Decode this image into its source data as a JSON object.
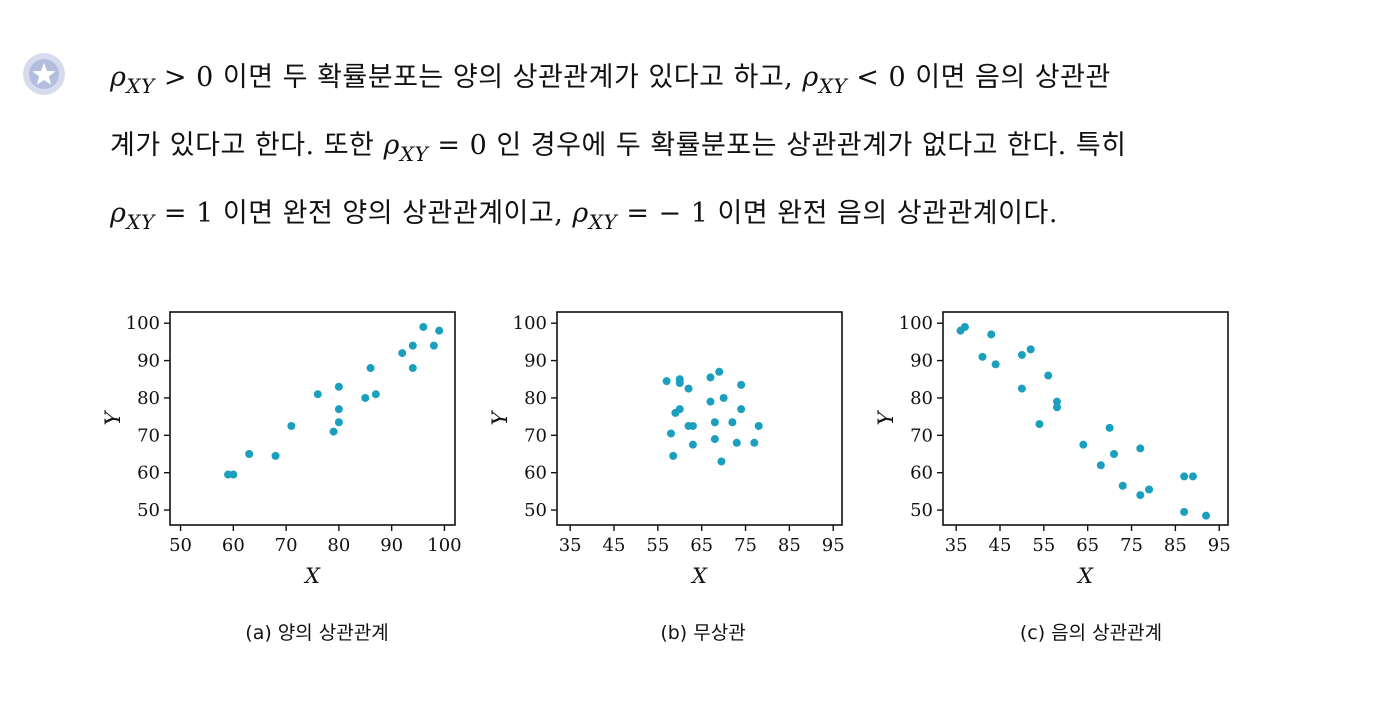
{
  "paragraph": {
    "line1": {
      "rho1": "ρ",
      "sub1": "XY",
      "t1": "> 0 이면 두 확률분포는 양의 상관관계가 있다고 하고,",
      "rho2": "ρ",
      "sub2": "XY",
      "t2": "< 0 이면 음의 상관관"
    },
    "line2": {
      "t1": "계가 있다고 한다. 또한",
      "rho": "ρ",
      "sub": "XY",
      "t2": "= 0 인 경우에 두 확률분포는 상관관계가 없다고 한다. 특히"
    },
    "line3": {
      "rho1": "ρ",
      "sub1": "XY",
      "t1": "= 1 이면 완전 양의 상관관계이고,",
      "rho2": "ρ",
      "sub2": "XY",
      "t2": "= − 1 이면 완전 음의 상관관계이다."
    }
  },
  "bullet_icon": "star-icon",
  "colors": {
    "point": "#1a9fbf",
    "bullet_outer": "#d6dcee",
    "bullet_inner": "#b3bedf"
  },
  "chart_data": [
    {
      "type": "scatter",
      "caption": "(a) 양의 상관관계",
      "xlabel": "X",
      "ylabel": "Y",
      "xlim": [
        48,
        102
      ],
      "ylim": [
        46,
        103
      ],
      "xticks": [
        50,
        60,
        70,
        80,
        90,
        100
      ],
      "yticks": [
        50,
        60,
        70,
        80,
        90,
        100
      ],
      "points": [
        [
          59,
          59.5
        ],
        [
          60,
          59.5
        ],
        [
          63,
          65
        ],
        [
          68,
          64.5
        ],
        [
          71,
          72.5
        ],
        [
          76,
          81
        ],
        [
          79,
          71
        ],
        [
          80,
          73.5
        ],
        [
          80,
          77
        ],
        [
          80,
          83
        ],
        [
          85,
          80
        ],
        [
          86,
          88
        ],
        [
          87,
          81
        ],
        [
          92,
          92
        ],
        [
          94,
          94
        ],
        [
          94,
          88
        ],
        [
          96,
          99
        ],
        [
          98,
          94
        ],
        [
          99,
          98
        ]
      ]
    },
    {
      "type": "scatter",
      "caption": "(b) 무상관",
      "xlabel": "X",
      "ylabel": "Y",
      "xlim": [
        32,
        97
      ],
      "ylim": [
        46,
        103
      ],
      "xticks": [
        35,
        45,
        55,
        65,
        75,
        85,
        95
      ],
      "yticks": [
        50,
        60,
        70,
        80,
        90,
        100
      ],
      "points": [
        [
          57,
          84.5
        ],
        [
          58,
          70.5
        ],
        [
          58.5,
          64.5
        ],
        [
          59,
          76
        ],
        [
          60,
          77
        ],
        [
          60,
          85
        ],
        [
          60,
          84
        ],
        [
          62,
          82.5
        ],
        [
          62,
          72.5
        ],
        [
          63,
          72.5
        ],
        [
          63,
          67.5
        ],
        [
          67,
          85.5
        ],
        [
          67,
          79
        ],
        [
          68,
          73.5
        ],
        [
          68,
          69
        ],
        [
          69,
          87
        ],
        [
          69.5,
          63
        ],
        [
          70,
          80
        ],
        [
          72,
          73.5
        ],
        [
          73,
          68
        ],
        [
          74,
          83.5
        ],
        [
          74,
          77
        ],
        [
          77,
          68
        ],
        [
          78,
          72.5
        ]
      ]
    },
    {
      "type": "scatter",
      "caption": "(c) 음의 상관관계",
      "xlabel": "X",
      "ylabel": "Y",
      "xlim": [
        32,
        97
      ],
      "ylim": [
        46,
        103
      ],
      "xticks": [
        35,
        45,
        55,
        65,
        75,
        85,
        95
      ],
      "yticks": [
        50,
        60,
        70,
        80,
        90,
        100
      ],
      "points": [
        [
          36,
          98
        ],
        [
          37,
          99
        ],
        [
          41,
          91
        ],
        [
          43,
          97
        ],
        [
          44,
          89
        ],
        [
          50,
          91.5
        ],
        [
          50,
          82.5
        ],
        [
          52,
          93
        ],
        [
          54,
          73
        ],
        [
          56,
          86
        ],
        [
          58,
          79
        ],
        [
          58,
          77.5
        ],
        [
          64,
          67.5
        ],
        [
          68,
          62
        ],
        [
          70,
          72
        ],
        [
          71,
          65
        ],
        [
          73,
          56.5
        ],
        [
          77,
          54
        ],
        [
          77,
          66.5
        ],
        [
          79,
          55.5
        ],
        [
          87,
          59
        ],
        [
          87,
          49.5
        ],
        [
          89,
          59
        ],
        [
          92,
          48.5
        ]
      ]
    }
  ]
}
